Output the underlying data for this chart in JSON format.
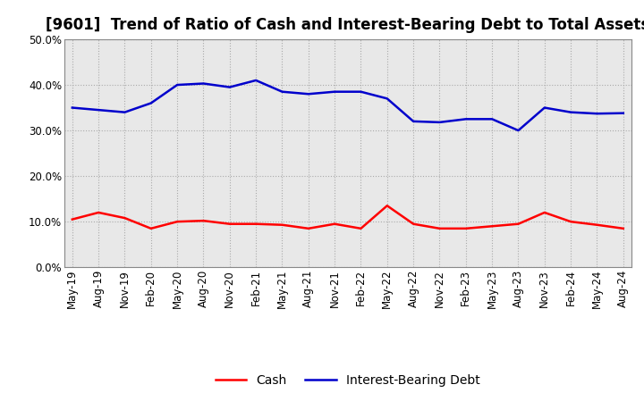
{
  "title": "[9601]  Trend of Ratio of Cash and Interest-Bearing Debt to Total Assets",
  "x_labels": [
    "May-19",
    "Aug-19",
    "Nov-19",
    "Feb-20",
    "May-20",
    "Aug-20",
    "Nov-20",
    "Feb-21",
    "May-21",
    "Aug-21",
    "Nov-21",
    "Feb-22",
    "May-22",
    "Aug-22",
    "Nov-22",
    "Feb-23",
    "May-23",
    "Aug-23",
    "Nov-23",
    "Feb-24",
    "May-24",
    "Aug-24"
  ],
  "cash": [
    0.105,
    0.12,
    0.108,
    0.085,
    0.1,
    0.102,
    0.095,
    0.095,
    0.093,
    0.085,
    0.095,
    0.085,
    0.135,
    0.095,
    0.085,
    0.085,
    0.09,
    0.095,
    0.12,
    0.1,
    0.093,
    0.085
  ],
  "debt": [
    0.35,
    0.345,
    0.34,
    0.36,
    0.4,
    0.403,
    0.395,
    0.41,
    0.385,
    0.38,
    0.385,
    0.385,
    0.37,
    0.32,
    0.318,
    0.325,
    0.325,
    0.3,
    0.35,
    0.34,
    0.337,
    0.338
  ],
  "cash_color": "#ff0000",
  "debt_color": "#0000cc",
  "ylim": [
    0.0,
    0.5
  ],
  "yticks": [
    0.0,
    0.1,
    0.2,
    0.3,
    0.4,
    0.5
  ],
  "grid_color": "#aaaaaa",
  "plot_bg_color": "#e8e8e8",
  "fig_bg_color": "#ffffff",
  "legend_cash": "Cash",
  "legend_debt": "Interest-Bearing Debt",
  "title_fontsize": 12,
  "axis_fontsize": 8.5
}
